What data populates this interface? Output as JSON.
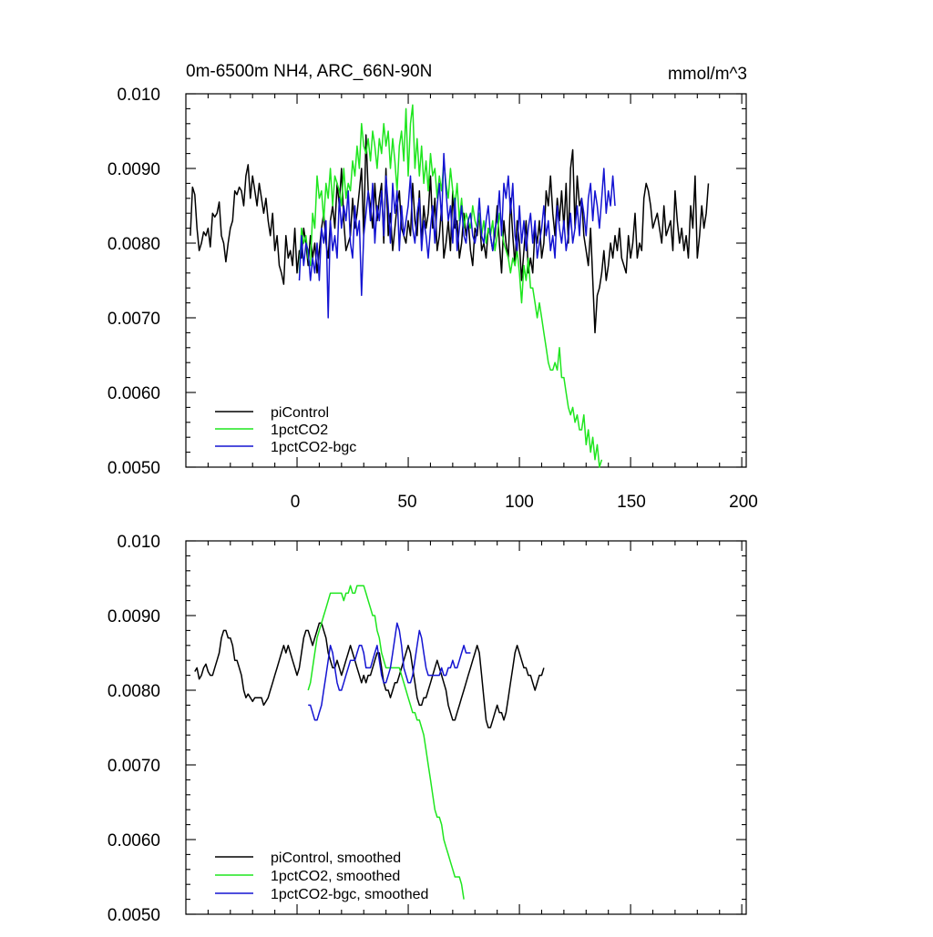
{
  "colors": {
    "picontrol": "#000000",
    "pct": "#1fe61f",
    "bgc": "#1414d2"
  },
  "chart_data": [
    {
      "type": "line",
      "title": "0m-6500m NH4, ARC_66N-90N",
      "units": "mmol/m^3",
      "xlim": [
        -50,
        202
      ],
      "ylim": [
        0.005,
        0.01
      ],
      "yticks": [
        "0.010",
        "0.0090",
        "0.0080",
        "0.0070",
        "0.0060",
        "0.0050"
      ],
      "xticks": [
        "0",
        "50",
        "100",
        "150",
        "200"
      ],
      "legend_position": "bottom-left",
      "series": [
        {
          "name": "piControl",
          "color_key": "picontrol",
          "x_start": -48,
          "x_step": 1,
          "values": [
            0.0081,
            0.00875,
            0.00865,
            0.0082,
            0.0079,
            0.008,
            0.00815,
            0.0081,
            0.0082,
            0.00795,
            0.0084,
            0.00835,
            0.0084,
            0.00855,
            0.0081,
            0.008,
            0.00775,
            0.008,
            0.0082,
            0.0083,
            0.0087,
            0.00865,
            0.00875,
            0.0087,
            0.0085,
            0.0089,
            0.00905,
            0.0086,
            0.0089,
            0.0087,
            0.0085,
            0.0088,
            0.0086,
            0.0084,
            0.0086,
            0.0083,
            0.0081,
            0.0084,
            0.0079,
            0.0081,
            0.0077,
            0.0076,
            0.00745,
            0.0081,
            0.0078,
            0.0079,
            0.0077,
            0.0082,
            0.0076,
            0.0079,
            0.0078,
            0.0082,
            0.008,
            0.0077,
            0.0081,
            0.0078,
            0.008,
            0.0076,
            0.0079,
            0.0082,
            0.0084,
            0.008,
            0.0078,
            0.0083,
            0.0085,
            0.0082,
            0.0088,
            0.0085,
            0.009,
            0.0083,
            0.0079,
            0.008,
            0.0081,
            0.0086,
            0.0082,
            0.0084,
            0.0087,
            0.009,
            0.0081,
            0.00945,
            0.0087,
            0.0085,
            0.0082,
            0.0088,
            0.0083,
            0.0086,
            0.0088,
            0.008,
            0.009,
            0.0081,
            0.0084,
            0.0079,
            0.0082,
            0.0085,
            0.0087,
            0.0082,
            0.0081,
            0.008,
            0.0083,
            0.0081,
            0.0088,
            0.0083,
            0.0081,
            0.0087,
            0.008,
            0.0085,
            0.0082,
            0.0084,
            0.0089,
            0.0082,
            0.0086,
            0.0079,
            0.0081,
            0.0085,
            0.0078,
            0.008,
            0.0083,
            0.0079,
            0.0087,
            0.0082,
            0.0083,
            0.0078,
            0.008,
            0.0084,
            0.0081,
            0.0083,
            0.0079,
            0.0077,
            0.0082,
            0.0081,
            0.0084,
            0.0079,
            0.008,
            0.0078,
            0.0082,
            0.0081,
            0.0079,
            0.0081,
            0.0085,
            0.008,
            0.0076,
            0.0083,
            0.008,
            0.0078,
            0.0086,
            0.0081,
            0.0077,
            0.0083,
            0.008,
            0.0075,
            0.0079,
            0.0083,
            0.0076,
            0.0078,
            0.0076,
            0.0082,
            0.008,
            0.0083,
            0.0078,
            0.008,
            0.0087,
            0.0085,
            0.0089,
            0.0084,
            0.0081,
            0.0086,
            0.0083,
            0.0087,
            0.0082,
            0.0088,
            0.008,
            0.009,
            0.00925,
            0.0082,
            0.0089,
            0.0085,
            0.0086,
            0.0081,
            0.0079,
            0.0077,
            0.0082,
            0.0075,
            0.0068,
            0.0073,
            0.0074,
            0.0076,
            0.0079,
            0.0075,
            0.0077,
            0.008,
            0.0078,
            0.0081,
            0.0079,
            0.0082,
            0.0078,
            0.0077,
            0.0076,
            0.0081,
            0.0078,
            0.008,
            0.0084,
            0.0078,
            0.008,
            0.0079,
            0.0086,
            0.0088,
            0.0087,
            0.0085,
            0.0082,
            0.0083,
            0.0084,
            0.0082,
            0.008,
            0.0085,
            0.0081,
            0.0082,
            0.0083,
            0.0079,
            0.0087,
            0.0083,
            0.008,
            0.0082,
            0.0079,
            0.0081,
            0.0078,
            0.0085,
            0.0082,
            0.0089,
            0.0078,
            0.0081,
            0.0085,
            0.0082,
            0.0084,
            0.0088
          ]
        },
        {
          "name": "1pctCO2",
          "color_key": "pct",
          "x_start": 1,
          "x_step": 1,
          "values": [
            0.0076,
            0.0082,
            0.008,
            0.0081,
            0.0078,
            0.0077,
            0.0084,
            0.0082,
            0.0089,
            0.0086,
            0.0087,
            0.0083,
            0.0088,
            0.0086,
            0.009,
            0.0085,
            0.0089,
            0.0088,
            0.0087,
            0.0085,
            0.009,
            0.0086,
            0.0088,
            0.0087,
            0.0091,
            0.0089,
            0.0093,
            0.009,
            0.0096,
            0.0093,
            0.0092,
            0.0094,
            0.0091,
            0.0095,
            0.0093,
            0.009,
            0.0094,
            0.0092,
            0.0096,
            0.0093,
            0.0095,
            0.009,
            0.0094,
            0.0091,
            0.0087,
            0.0093,
            0.0095,
            0.0091,
            0.0098,
            0.0089,
            0.0096,
            0.00985,
            0.009,
            0.0094,
            0.0089,
            0.0093,
            0.0088,
            0.0091,
            0.0087,
            0.0092,
            0.0089,
            0.009,
            0.0086,
            0.0089,
            0.0087,
            0.0091,
            0.0088,
            0.0086,
            0.009,
            0.0087,
            0.0085,
            0.0088,
            0.0083,
            0.0086,
            0.0082,
            0.0084,
            0.0083,
            0.0082,
            0.0085,
            0.0083,
            0.0082,
            0.0084,
            0.0081,
            0.0083,
            0.008,
            0.0082,
            0.0081,
            0.0083,
            0.0079,
            0.0081,
            0.0084,
            0.0082,
            0.008,
            0.0079,
            0.0078,
            0.0076,
            0.0078,
            0.0077,
            0.0079,
            0.0076,
            0.0072,
            0.0077,
            0.0075,
            0.0078,
            0.0074,
            0.0074,
            0.0072,
            0.007,
            0.0072,
            0.007,
            0.0068,
            0.0066,
            0.0064,
            0.0063,
            0.0063,
            0.0064,
            0.0063,
            0.0066,
            0.0062,
            0.0062,
            0.006,
            0.0058,
            0.0057,
            0.0058,
            0.0056,
            0.0057,
            0.0055,
            0.0055,
            0.0057,
            0.0053,
            0.0055,
            0.0052,
            0.0054,
            0.0051,
            0.0053,
            0.005,
            0.0051
          ]
        },
        {
          "name": "1pctCO2-bgc",
          "color_key": "bgc",
          "x_start": 1,
          "x_step": 1,
          "values": [
            0.0075,
            0.0081,
            0.0077,
            0.008,
            0.0079,
            0.0075,
            0.0078,
            0.0076,
            0.008,
            0.0075,
            0.0082,
            0.008,
            0.0083,
            0.007,
            0.0083,
            0.0079,
            0.0081,
            0.0078,
            0.0086,
            0.0082,
            0.0085,
            0.0083,
            0.0087,
            0.008,
            0.0078,
            0.0085,
            0.0081,
            0.0083,
            0.0073,
            0.0081,
            0.0084,
            0.0087,
            0.0083,
            0.0088,
            0.008,
            0.0085,
            0.0083,
            0.0087,
            0.0081,
            0.0089,
            0.0085,
            0.008,
            0.0088,
            0.0084,
            0.0087,
            0.0079,
            0.0085,
            0.0081,
            0.0083,
            0.0085,
            0.0089,
            0.0082,
            0.008,
            0.0084,
            0.0086,
            0.0079,
            0.0083,
            0.0081,
            0.0078,
            0.0082,
            0.0085,
            0.008,
            0.0085,
            0.0088,
            0.0083,
            0.0092,
            0.0087,
            0.0083,
            0.0085,
            0.008,
            0.0086,
            0.0079,
            0.0082,
            0.0085,
            0.0081,
            0.008,
            0.0083,
            0.0084,
            0.0081,
            0.008,
            0.0082,
            0.0086,
            0.0081,
            0.008,
            0.0083,
            0.0085,
            0.0081,
            0.0079,
            0.0082,
            0.0083,
            0.0087,
            0.0081,
            0.0088,
            0.0086,
            0.0089,
            0.0084,
            0.0088,
            0.0081,
            0.0079,
            0.0085,
            0.008,
            0.0083,
            0.0079,
            0.0082,
            0.0084,
            0.008,
            0.0083,
            0.0078,
            0.008,
            0.0082,
            0.0085,
            0.0081,
            0.0083,
            0.0079,
            0.0081,
            0.0078,
            0.0085,
            0.0082,
            0.008,
            0.0083,
            0.0079,
            0.0081,
            0.0084,
            0.008,
            0.0082,
            0.0085,
            0.0081,
            0.0086,
            0.0084,
            0.0081,
            0.0086,
            0.0088,
            0.0083,
            0.0087,
            0.0085,
            0.0082,
            0.0086,
            0.009,
            0.0084,
            0.0087,
            0.0085,
            0.0089,
            0.0085
          ]
        }
      ]
    },
    {
      "type": "line",
      "xlim": [
        -50,
        202
      ],
      "ylim": [
        0.005,
        0.01
      ],
      "yticks": [
        "0.010",
        "0.0090",
        "0.0080",
        "0.0070",
        "0.0060",
        "0.0050"
      ],
      "legend_position": "bottom-left",
      "series": [
        {
          "name": "piControl, smoothed",
          "color_key": "picontrol",
          "x_start": -46,
          "x_step": 1,
          "values": [
            0.00825,
            0.0083,
            0.00815,
            0.0082,
            0.0083,
            0.00835,
            0.00825,
            0.0082,
            0.0082,
            0.0083,
            0.0084,
            0.0085,
            0.0087,
            0.0088,
            0.0088,
            0.0087,
            0.0087,
            0.0086,
            0.0084,
            0.0084,
            0.0083,
            0.0082,
            0.008,
            0.0079,
            0.00795,
            0.0079,
            0.00785,
            0.0079,
            0.0079,
            0.0079,
            0.0079,
            0.0078,
            0.00785,
            0.0079,
            0.008,
            0.0081,
            0.0082,
            0.0083,
            0.0084,
            0.0085,
            0.0086,
            0.0085,
            0.0086,
            0.0085,
            0.0084,
            0.0083,
            0.0082,
            0.0083,
            0.0085,
            0.0087,
            0.0088,
            0.0088,
            0.0087,
            0.0086,
            0.0087,
            0.0088,
            0.0089,
            0.0089,
            0.0088,
            0.0087,
            0.0085,
            0.0084,
            0.0083,
            0.0083,
            0.0084,
            0.0083,
            0.0082,
            0.0083,
            0.0084,
            0.0085,
            0.0086,
            0.0085,
            0.0084,
            0.0083,
            0.0082,
            0.0081,
            0.0082,
            0.0081,
            0.0082,
            0.0082,
            0.0083,
            0.0084,
            0.0085,
            0.0085,
            0.0083,
            0.0081,
            0.008,
            0.008,
            0.0079,
            0.008,
            0.0081,
            0.0081,
            0.0082,
            0.0083,
            0.0084,
            0.0085,
            0.0086,
            0.0085,
            0.0083,
            0.0081,
            0.0079,
            0.0078,
            0.0078,
            0.0079,
            0.0079,
            0.008,
            0.0081,
            0.0082,
            0.0083,
            0.0084,
            0.0083,
            0.0082,
            0.0081,
            0.008,
            0.0078,
            0.0077,
            0.0076,
            0.0076,
            0.0077,
            0.0078,
            0.0079,
            0.008,
            0.0081,
            0.0082,
            0.0083,
            0.0084,
            0.0085,
            0.0086,
            0.0085,
            0.0082,
            0.0079,
            0.0076,
            0.0075,
            0.0075,
            0.0076,
            0.0077,
            0.0078,
            0.0077,
            0.0077,
            0.0076,
            0.0077,
            0.0079,
            0.0081,
            0.0083,
            0.0085,
            0.0086,
            0.0085,
            0.0084,
            0.0083,
            0.0083,
            0.0082,
            0.0082,
            0.0081,
            0.008,
            0.0081,
            0.0082,
            0.0082,
            0.0083
          ]
        },
        {
          "name": "1pctCO2, smoothed",
          "color_key": "pct",
          "x_start": 5,
          "x_step": 1,
          "values": [
            0.008,
            0.0081,
            0.0083,
            0.0085,
            0.0087,
            0.0088,
            0.0089,
            0.009,
            0.0091,
            0.0092,
            0.0093,
            0.0093,
            0.0093,
            0.0093,
            0.0093,
            0.0093,
            0.0092,
            0.0093,
            0.0093,
            0.0094,
            0.0093,
            0.0093,
            0.0094,
            0.0094,
            0.0094,
            0.0094,
            0.0093,
            0.0092,
            0.0091,
            0.009,
            0.009,
            0.0088,
            0.0087,
            0.0085,
            0.0084,
            0.0083,
            0.0083,
            0.0083,
            0.0083,
            0.0083,
            0.0083,
            0.0083,
            0.0082,
            0.0081,
            0.008,
            0.0079,
            0.0078,
            0.0077,
            0.0077,
            0.0076,
            0.0076,
            0.0075,
            0.0074,
            0.0072,
            0.007,
            0.0068,
            0.0066,
            0.0064,
            0.0063,
            0.0063,
            0.0062,
            0.006,
            0.0059,
            0.0058,
            0.0057,
            0.0056,
            0.0055,
            0.0055,
            0.0055,
            0.0054,
            0.0052
          ]
        },
        {
          "name": "1pctCO2-bgc, smoothed",
          "color_key": "bgc",
          "x_start": 5,
          "x_step": 1,
          "values": [
            0.0078,
            0.0078,
            0.0077,
            0.0076,
            0.0076,
            0.0077,
            0.0078,
            0.008,
            0.0082,
            0.0084,
            0.0086,
            0.0085,
            0.0083,
            0.0081,
            0.008,
            0.008,
            0.0081,
            0.0082,
            0.0083,
            0.0084,
            0.0084,
            0.0084,
            0.0085,
            0.0086,
            0.0086,
            0.0085,
            0.0083,
            0.0083,
            0.0083,
            0.0084,
            0.0085,
            0.0086,
            0.0084,
            0.0082,
            0.0081,
            0.0081,
            0.0082,
            0.0083,
            0.0085,
            0.0087,
            0.0089,
            0.0088,
            0.0086,
            0.0083,
            0.0082,
            0.0081,
            0.0081,
            0.0082,
            0.0084,
            0.0086,
            0.0088,
            0.0087,
            0.0085,
            0.0083,
            0.0082,
            0.0082,
            0.0082,
            0.0082,
            0.0082,
            0.0082,
            0.0083,
            0.0082,
            0.0082,
            0.0083,
            0.0083,
            0.0084,
            0.0083,
            0.0083,
            0.0084,
            0.0085,
            0.0086,
            0.0085,
            0.0085,
            0.0085
          ]
        }
      ]
    }
  ]
}
